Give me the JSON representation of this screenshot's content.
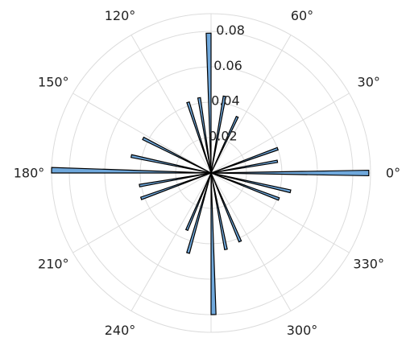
{
  "chart_data": {
    "type": "polar-histogram",
    "title": "",
    "bar_color": "#6fa8dc",
    "edge_color": "#000000",
    "grid_color": "#dcdcdc",
    "rlim": [
      0,
      0.09
    ],
    "r_ticks": [
      0.02,
      0.04,
      0.06,
      0.08
    ],
    "r_tick_labels": [
      "0.02",
      "0.04",
      "0.06",
      "0.08"
    ],
    "theta_ticks_deg": [
      0,
      30,
      60,
      90,
      120,
      150,
      180,
      210,
      240,
      270,
      300,
      330
    ],
    "theta_tick_labels": [
      "0°",
      "30°",
      "60°",
      "",
      "120°",
      "150°",
      "180°",
      "210°",
      "240°",
      "",
      "300°",
      "330°"
    ],
    "bin_width_deg": 2,
    "bars": [
      {
        "theta": 0,
        "r": 0.089
      },
      {
        "theta": 10,
        "r": 0.038
      },
      {
        "theta": 20,
        "r": 0.04
      },
      {
        "theta": 65,
        "r": 0.035
      },
      {
        "theta": 80,
        "r": 0.044
      },
      {
        "theta": 91,
        "r": 0.079
      },
      {
        "theta": 99,
        "r": 0.043
      },
      {
        "theta": 108,
        "r": 0.042
      },
      {
        "theta": 153,
        "r": 0.043
      },
      {
        "theta": 168,
        "r": 0.046
      },
      {
        "theta": 179,
        "r": 0.09
      },
      {
        "theta": 190,
        "r": 0.041
      },
      {
        "theta": 200,
        "r": 0.042
      },
      {
        "theta": 247,
        "r": 0.035
      },
      {
        "theta": 254,
        "r": 0.047
      },
      {
        "theta": 271,
        "r": 0.08
      },
      {
        "theta": 281,
        "r": 0.044
      },
      {
        "theta": 293,
        "r": 0.042
      },
      {
        "theta": 339,
        "r": 0.041
      },
      {
        "theta": 347,
        "r": 0.046
      }
    ]
  }
}
